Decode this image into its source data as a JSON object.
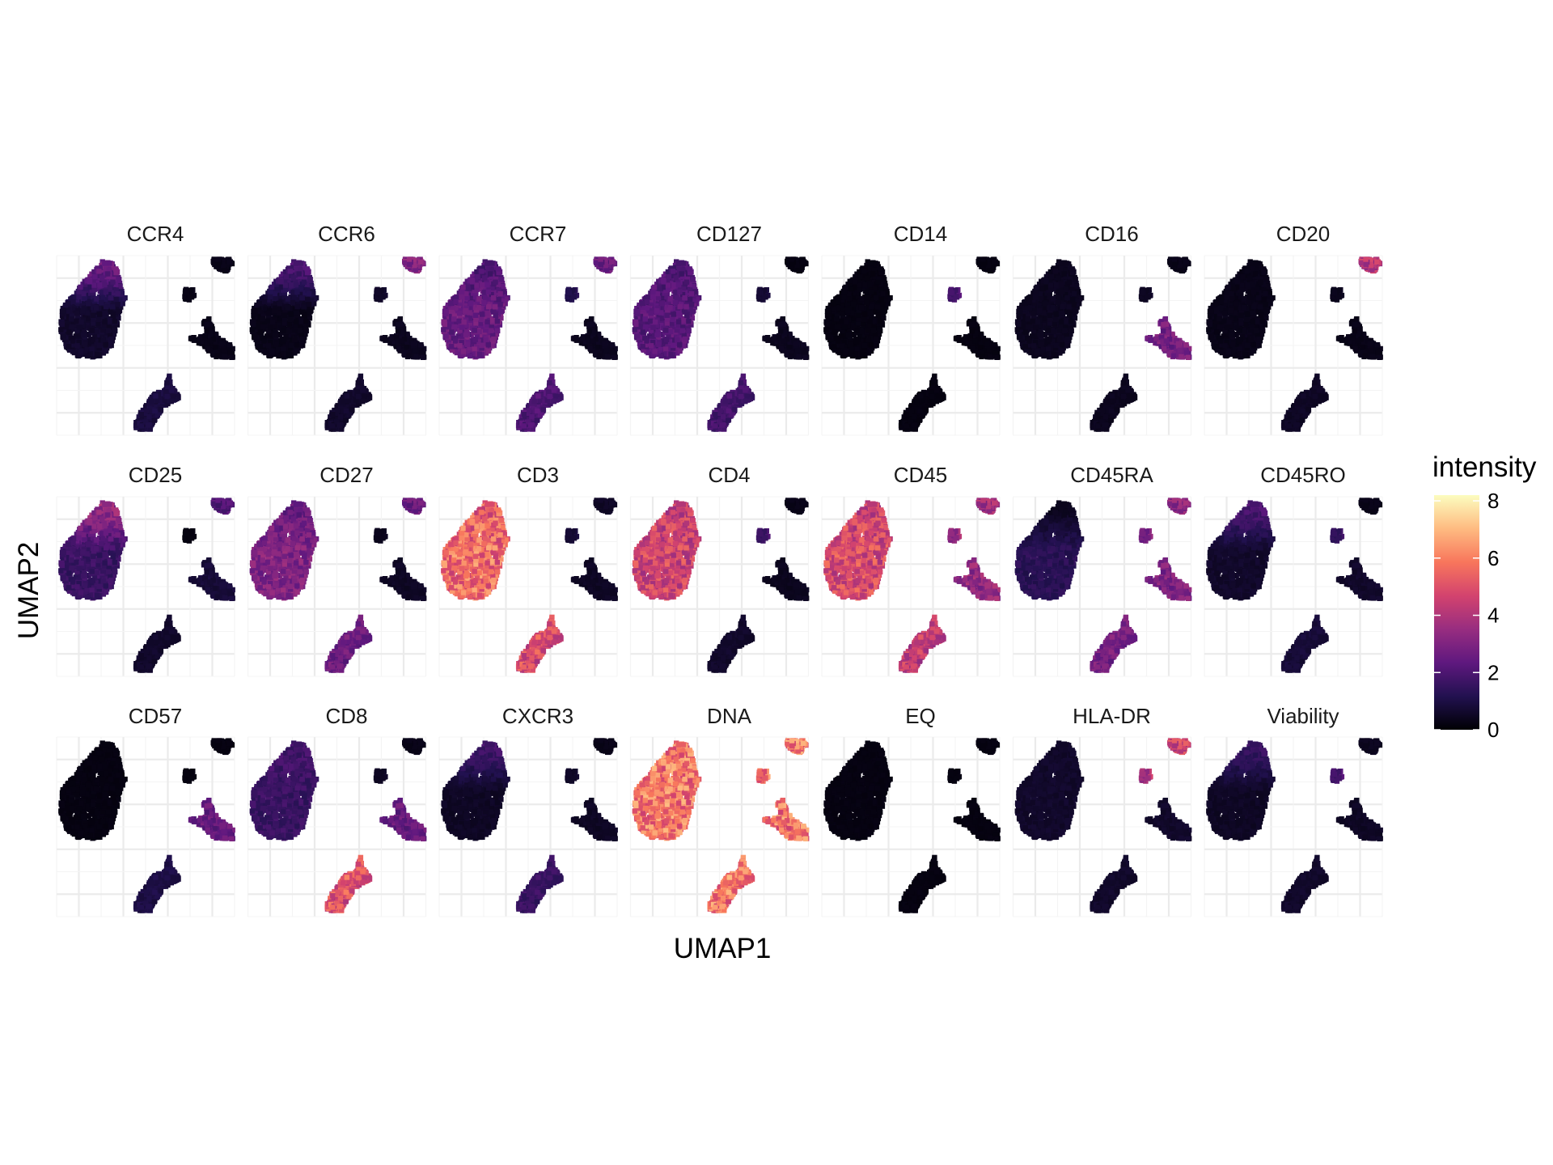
{
  "chart_data": {
    "type": "scatter",
    "subtype": "faceted UMAP embedding colored by marker intensity",
    "xlabel": "UMAP1",
    "ylabel": "UMAP2",
    "grid": true,
    "axis_tick_labels_shown": false,
    "facet_layout": {
      "rows": 3,
      "cols": 7
    },
    "color_scale": {
      "title": "intensity",
      "palette": "magma",
      "colors": [
        "#000004",
        "#221150",
        "#5f187f",
        "#982d80",
        "#d3436e",
        "#f8765c",
        "#febb81",
        "#fcfdbf"
      ],
      "range": [
        0,
        8.2
      ],
      "ticks": [
        0,
        2,
        4,
        6,
        8
      ],
      "tick_labels": [
        "0",
        "2",
        "4",
        "6",
        "8"
      ],
      "legend_position": "right"
    },
    "clusters": [
      "main",
      "top_right",
      "small",
      "right_middle",
      "bottom"
    ],
    "facets": [
      {
        "label": "CCR4",
        "intensity": {
          "main": 0.6,
          "main_top": 2.6,
          "top_right": 0.3,
          "small": 0.3,
          "right_middle": 0.3,
          "bottom": 0.9
        }
      },
      {
        "label": "CCR6",
        "intensity": {
          "main": 0.3,
          "main_top": 2.0,
          "top_right": 3.0,
          "small": 0.6,
          "right_middle": 0.4,
          "bottom": 0.6
        }
      },
      {
        "label": "CCR7",
        "intensity": {
          "main": 2.5,
          "main_top": 2.0,
          "top_right": 2.5,
          "small": 1.2,
          "right_middle": 0.4,
          "bottom": 2.0
        }
      },
      {
        "label": "CD127",
        "intensity": {
          "main": 2.2,
          "main_top": 2.0,
          "top_right": 0.2,
          "small": 0.8,
          "right_middle": 0.4,
          "bottom": 1.8
        }
      },
      {
        "label": "CD14",
        "intensity": {
          "main": 0.2,
          "main_top": 0.2,
          "top_right": 0.2,
          "small": 2.0,
          "right_middle": 0.2,
          "bottom": 0.2
        }
      },
      {
        "label": "CD16",
        "intensity": {
          "main": 0.4,
          "main_top": 0.4,
          "top_right": 0.3,
          "small": 0.5,
          "right_middle": 2.8,
          "bottom": 0.4
        }
      },
      {
        "label": "CD20",
        "intensity": {
          "main": 0.3,
          "main_top": 0.3,
          "top_right": 4.0,
          "small": 0.4,
          "right_middle": 0.3,
          "bottom": 0.5
        }
      },
      {
        "label": "CD25",
        "intensity": {
          "main": 1.6,
          "main_top": 3.5,
          "top_right": 2.0,
          "small": 0.2,
          "right_middle": 0.8,
          "bottom": 0.6
        }
      },
      {
        "label": "CD27",
        "intensity": {
          "main": 3.0,
          "main_top": 2.5,
          "top_right": 2.5,
          "small": 0.4,
          "right_middle": 0.5,
          "bottom": 2.6
        }
      },
      {
        "label": "CD3",
        "intensity": {
          "main": 5.6,
          "main_top": 5.3,
          "top_right": 0.5,
          "small": 0.8,
          "right_middle": 0.5,
          "bottom": 4.8
        }
      },
      {
        "label": "CD4",
        "intensity": {
          "main": 4.6,
          "main_top": 4.4,
          "top_right": 0.3,
          "small": 1.8,
          "right_middle": 0.4,
          "bottom": 0.6
        }
      },
      {
        "label": "CD45",
        "intensity": {
          "main": 4.8,
          "main_top": 4.5,
          "top_right": 3.6,
          "small": 3.6,
          "right_middle": 3.4,
          "bottom": 4.3
        }
      },
      {
        "label": "CD45RA",
        "intensity": {
          "main": 1.3,
          "main_top": 0.4,
          "top_right": 3.2,
          "small": 3.0,
          "right_middle": 3.0,
          "bottom": 2.8
        }
      },
      {
        "label": "CD45RO",
        "intensity": {
          "main": 0.6,
          "main_top": 2.0,
          "top_right": 0.3,
          "small": 1.6,
          "right_middle": 0.6,
          "bottom": 0.8
        }
      },
      {
        "label": "CD57",
        "intensity": {
          "main": 0.2,
          "main_top": 0.2,
          "top_right": 0.2,
          "small": 0.2,
          "right_middle": 2.5,
          "bottom": 1.0
        }
      },
      {
        "label": "CD8",
        "intensity": {
          "main": 1.6,
          "main_top": 1.8,
          "top_right": 0.3,
          "small": 0.5,
          "right_middle": 2.5,
          "bottom": 5.0
        }
      },
      {
        "label": "CXCR3",
        "intensity": {
          "main": 0.5,
          "main_top": 1.8,
          "top_right": 0.3,
          "small": 0.6,
          "right_middle": 0.5,
          "bottom": 1.6
        }
      },
      {
        "label": "DNA",
        "intensity": {
          "main": 5.8,
          "main_top": 5.8,
          "top_right": 5.8,
          "small": 5.8,
          "right_middle": 5.8,
          "bottom": 5.8
        }
      },
      {
        "label": "EQ",
        "intensity": {
          "main": 0.2,
          "main_top": 0.2,
          "top_right": 0.2,
          "small": 0.2,
          "right_middle": 0.2,
          "bottom": 0.2
        }
      },
      {
        "label": "HLA-DR",
        "intensity": {
          "main": 0.6,
          "main_top": 0.6,
          "top_right": 4.5,
          "small": 4.0,
          "right_middle": 0.6,
          "bottom": 0.6
        }
      },
      {
        "label": "Viability",
        "intensity": {
          "main": 0.5,
          "main_top": 1.6,
          "top_right": 0.4,
          "small": 2.0,
          "right_middle": 0.5,
          "bottom": 0.6
        }
      }
    ]
  }
}
